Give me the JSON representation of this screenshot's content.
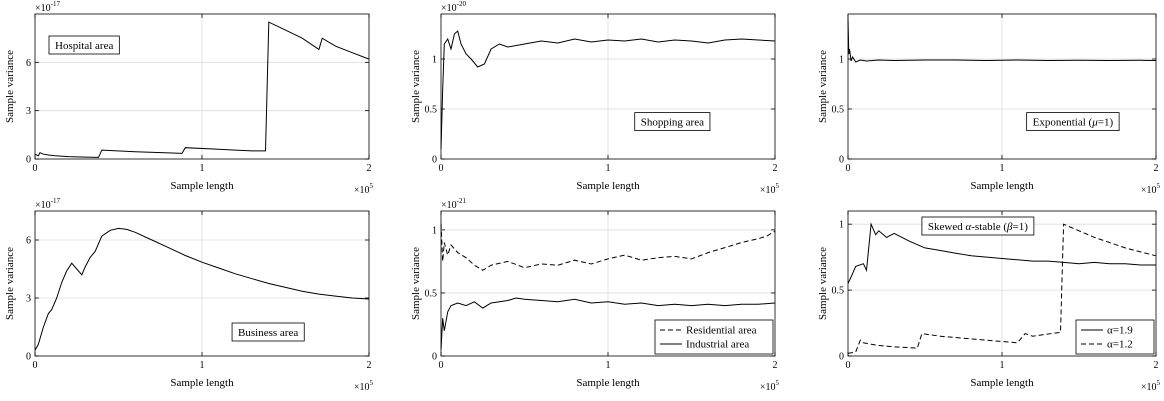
{
  "chart_data": [
    {
      "type": "line",
      "xlabel": "Sample length",
      "ylabel": "Sample variance",
      "xlim": [
        0,
        2
      ],
      "ylim": [
        0,
        9
      ],
      "xticks": [
        "0",
        "1",
        "2"
      ],
      "yticks": [
        "0",
        "3",
        "6"
      ],
      "ytick_values": [
        0,
        3,
        6
      ],
      "y_multiplier": {
        "base": "×10",
        "exp": "-17"
      },
      "x_multiplier": {
        "base": "×10",
        "exp": "5"
      },
      "grid": true,
      "annotation": {
        "text": "Hospital area",
        "position": "top-left"
      },
      "series": [
        {
          "style": "solid",
          "x": [
            0,
            0.02,
            0.03,
            0.05,
            0.08,
            0.12,
            0.2,
            0.3,
            0.38,
            0.4,
            0.6,
            0.8,
            0.88,
            0.9,
            1.1,
            1.2,
            1.3,
            1.38,
            1.4,
            1.5,
            1.6,
            1.7,
            1.72,
            1.8,
            1.9,
            2.0
          ],
          "y": [
            0.3,
            0.2,
            0.4,
            0.3,
            0.25,
            0.2,
            0.15,
            0.12,
            0.1,
            0.55,
            0.45,
            0.38,
            0.35,
            0.7,
            0.6,
            0.55,
            0.5,
            0.5,
            8.5,
            8.0,
            7.5,
            6.8,
            7.5,
            7.0,
            6.6,
            6.2
          ]
        }
      ]
    },
    {
      "type": "line",
      "xlabel": "Sample length",
      "ylabel": "Sample variance",
      "xlim": [
        0,
        2
      ],
      "ylim": [
        0,
        1.45
      ],
      "xticks": [
        "0",
        "1",
        "2"
      ],
      "yticks": [
        "0",
        "0.5",
        "1"
      ],
      "ytick_values": [
        0,
        0.5,
        1
      ],
      "y_multiplier": {
        "base": "×10",
        "exp": "-20"
      },
      "x_multiplier": {
        "base": "×10",
        "exp": "5"
      },
      "grid": true,
      "annotation": {
        "text": "Shopping area",
        "position": "center-right"
      },
      "series": [
        {
          "style": "solid",
          "x": [
            0,
            0.01,
            0.02,
            0.04,
            0.06,
            0.08,
            0.1,
            0.12,
            0.15,
            0.18,
            0.22,
            0.26,
            0.3,
            0.35,
            0.4,
            0.5,
            0.6,
            0.7,
            0.8,
            0.9,
            1.0,
            1.1,
            1.2,
            1.3,
            1.4,
            1.5,
            1.6,
            1.7,
            1.8,
            1.9,
            2.0
          ],
          "y": [
            0.1,
            0.7,
            1.15,
            1.2,
            1.1,
            1.25,
            1.28,
            1.15,
            1.05,
            1.0,
            0.92,
            0.95,
            1.1,
            1.15,
            1.12,
            1.15,
            1.18,
            1.16,
            1.2,
            1.17,
            1.19,
            1.18,
            1.2,
            1.17,
            1.19,
            1.18,
            1.16,
            1.19,
            1.2,
            1.19,
            1.18
          ]
        }
      ]
    },
    {
      "type": "line",
      "xlabel": "Sample length",
      "ylabel": "Sample variance",
      "xlim": [
        0,
        2
      ],
      "ylim": [
        0,
        1.45
      ],
      "xticks": [
        "0",
        "1",
        "2"
      ],
      "yticks": [
        "0",
        "0.5",
        "1"
      ],
      "ytick_values": [
        0,
        0.5,
        1
      ],
      "x_multiplier": {
        "base": "×10",
        "exp": "5"
      },
      "grid": true,
      "annotation": {
        "text": "Exponential (",
        "greek": "μ",
        "suffix": "=1)",
        "position": "center-right"
      },
      "series": [
        {
          "style": "solid",
          "x": [
            0,
            0.005,
            0.01,
            0.02,
            0.03,
            0.05,
            0.08,
            0.12,
            0.2,
            0.3,
            0.5,
            0.7,
            0.9,
            1.1,
            1.3,
            1.5,
            1.7,
            1.9,
            2.0
          ],
          "y": [
            1.4,
            1.05,
            1.1,
            0.98,
            1.02,
            0.97,
            0.99,
            0.98,
            0.99,
            0.985,
            0.99,
            0.99,
            0.985,
            0.99,
            0.985,
            0.988,
            0.985,
            0.987,
            0.985
          ]
        }
      ]
    },
    {
      "type": "line",
      "xlabel": "Sample length",
      "ylabel": "Sample variance",
      "xlim": [
        0,
        2
      ],
      "ylim": [
        0,
        7.5
      ],
      "xticks": [
        "0",
        "1",
        "2"
      ],
      "yticks": [
        "0",
        "3",
        "6"
      ],
      "ytick_values": [
        0,
        3,
        6
      ],
      "y_multiplier": {
        "base": "×10",
        "exp": "-17"
      },
      "x_multiplier": {
        "base": "×10",
        "exp": "5"
      },
      "grid": true,
      "annotation": {
        "text": "Business area",
        "position": "bottom-right"
      },
      "series": [
        {
          "style": "solid",
          "x": [
            0,
            0.02,
            0.05,
            0.08,
            0.1,
            0.13,
            0.16,
            0.19,
            0.22,
            0.25,
            0.28,
            0.3,
            0.33,
            0.36,
            0.4,
            0.45,
            0.5,
            0.55,
            0.6,
            0.7,
            0.8,
            0.9,
            1.0,
            1.1,
            1.2,
            1.3,
            1.4,
            1.5,
            1.6,
            1.7,
            1.8,
            1.9,
            2.0
          ],
          "y": [
            0.3,
            0.6,
            1.5,
            2.2,
            2.4,
            3.0,
            3.8,
            4.4,
            4.8,
            4.5,
            4.2,
            4.6,
            5.1,
            5.4,
            6.2,
            6.5,
            6.6,
            6.55,
            6.4,
            6.0,
            5.6,
            5.2,
            4.85,
            4.55,
            4.25,
            4.0,
            3.75,
            3.55,
            3.35,
            3.2,
            3.1,
            3.0,
            2.95
          ]
        }
      ]
    },
    {
      "type": "line",
      "xlabel": "Sample length",
      "ylabel": "Sample variance",
      "xlim": [
        0,
        2
      ],
      "ylim": [
        0,
        1.15
      ],
      "xticks": [
        "0",
        "1",
        "2"
      ],
      "yticks": [
        "0",
        "0.5",
        "1"
      ],
      "ytick_values": [
        0,
        0.5,
        1
      ],
      "y_multiplier": {
        "base": "×10",
        "exp": "-21"
      },
      "x_multiplier": {
        "base": "×10",
        "exp": "5"
      },
      "grid": true,
      "legend": {
        "position": "bottom-right",
        "entries": [
          "Residential area",
          "Industrial area"
        ]
      },
      "series": [
        {
          "name": "Residential area",
          "style": "dashed",
          "x": [
            0,
            0.01,
            0.02,
            0.04,
            0.06,
            0.1,
            0.15,
            0.2,
            0.25,
            0.3,
            0.4,
            0.5,
            0.6,
            0.7,
            0.8,
            0.9,
            1.0,
            1.1,
            1.2,
            1.3,
            1.4,
            1.5,
            1.6,
            1.7,
            1.8,
            1.9,
            1.95,
            2.0
          ],
          "y": [
            1.05,
            0.75,
            0.9,
            0.8,
            0.88,
            0.82,
            0.78,
            0.72,
            0.68,
            0.72,
            0.75,
            0.7,
            0.73,
            0.72,
            0.76,
            0.73,
            0.77,
            0.8,
            0.76,
            0.78,
            0.79,
            0.77,
            0.82,
            0.86,
            0.9,
            0.93,
            0.95,
            0.99
          ]
        },
        {
          "name": "Industrial area",
          "style": "solid",
          "x": [
            0,
            0.01,
            0.02,
            0.04,
            0.06,
            0.1,
            0.15,
            0.2,
            0.25,
            0.3,
            0.4,
            0.45,
            0.5,
            0.6,
            0.7,
            0.8,
            0.9,
            1.0,
            1.1,
            1.2,
            1.3,
            1.4,
            1.5,
            1.6,
            1.7,
            1.8,
            1.9,
            2.0
          ],
          "y": [
            0.05,
            0.3,
            0.2,
            0.35,
            0.4,
            0.42,
            0.4,
            0.43,
            0.38,
            0.42,
            0.44,
            0.46,
            0.45,
            0.44,
            0.43,
            0.45,
            0.42,
            0.43,
            0.41,
            0.42,
            0.4,
            0.41,
            0.4,
            0.41,
            0.4,
            0.41,
            0.41,
            0.42
          ]
        }
      ]
    },
    {
      "type": "line",
      "xlabel": "Sample length",
      "ylabel": "Sample variance",
      "xlim": [
        0,
        2
      ],
      "ylim": [
        0,
        1.1
      ],
      "xticks": [
        "0",
        "1",
        "2"
      ],
      "yticks": [
        "0",
        "0.5",
        "1"
      ],
      "ytick_values": [
        0,
        0.5,
        1
      ],
      "x_multiplier": {
        "base": "×10",
        "exp": "5"
      },
      "grid": true,
      "annotation": {
        "text": "Skewed ",
        "greek": "α",
        "mid": "-stable (",
        "greek2": "β",
        "suffix": "=1)",
        "position": "top-center"
      },
      "legend": {
        "position": "bottom-right",
        "entries": [
          "α=1.9",
          "α=1.2"
        ]
      },
      "series": [
        {
          "name": "α=1.9",
          "style": "solid",
          "x": [
            0,
            0.02,
            0.05,
            0.1,
            0.12,
            0.15,
            0.18,
            0.2,
            0.25,
            0.3,
            0.4,
            0.5,
            0.6,
            0.7,
            0.8,
            0.9,
            1.0,
            1.1,
            1.2,
            1.3,
            1.4,
            1.5,
            1.6,
            1.7,
            1.8,
            1.9,
            2.0
          ],
          "y": [
            0.55,
            0.6,
            0.68,
            0.7,
            0.65,
            1.0,
            0.92,
            0.95,
            0.9,
            0.93,
            0.87,
            0.82,
            0.8,
            0.78,
            0.76,
            0.75,
            0.74,
            0.73,
            0.72,
            0.72,
            0.71,
            0.7,
            0.71,
            0.7,
            0.7,
            0.69,
            0.69
          ]
        },
        {
          "name": "α=1.2",
          "style": "dashed",
          "x": [
            0,
            0.05,
            0.08,
            0.1,
            0.2,
            0.3,
            0.45,
            0.48,
            0.6,
            0.8,
            1.0,
            1.1,
            1.15,
            1.2,
            1.38,
            1.4,
            1.5,
            1.6,
            1.7,
            1.8,
            1.9,
            2.0
          ],
          "y": [
            0.02,
            0.03,
            0.12,
            0.1,
            0.08,
            0.07,
            0.06,
            0.17,
            0.15,
            0.13,
            0.11,
            0.1,
            0.17,
            0.15,
            0.18,
            1.0,
            0.95,
            0.9,
            0.86,
            0.82,
            0.79,
            0.76
          ]
        }
      ]
    }
  ]
}
